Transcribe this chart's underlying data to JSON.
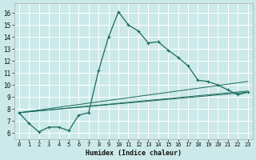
{
  "xlabel": "Humidex (Indice chaleur)",
  "bg_color": "#cce9e9",
  "line_color": "#1a6b5a",
  "grid_color": "#ffffff",
  "xlim": [
    -0.5,
    23.5
  ],
  "ylim": [
    5.5,
    16.8
  ],
  "xticks": [
    0,
    1,
    2,
    3,
    4,
    5,
    6,
    7,
    8,
    9,
    10,
    11,
    12,
    13,
    14,
    15,
    16,
    17,
    18,
    19,
    20,
    21,
    22,
    23
  ],
  "yticks": [
    6,
    7,
    8,
    9,
    10,
    11,
    12,
    13,
    14,
    15,
    16
  ],
  "line1_x": [
    0,
    1,
    2,
    3,
    4,
    5,
    6,
    7,
    8,
    9,
    10,
    11,
    12,
    13,
    14,
    15,
    16,
    17,
    18,
    19,
    20,
    21,
    22,
    23
  ],
  "line1_y": [
    7.7,
    6.8,
    6.1,
    6.5,
    6.5,
    6.2,
    7.5,
    7.7,
    11.2,
    14.0,
    16.1,
    15.0,
    14.5,
    13.5,
    13.6,
    12.9,
    12.3,
    11.6,
    10.4,
    10.3,
    10.0,
    9.6,
    9.2,
    9.4
  ],
  "line2_x": [
    0,
    23
  ],
  "line2_y": [
    7.7,
    9.4
  ],
  "line3_x": [
    0,
    23
  ],
  "line3_y": [
    7.7,
    9.5
  ],
  "line4_x": [
    0,
    23
  ],
  "line4_y": [
    7.7,
    10.3
  ]
}
